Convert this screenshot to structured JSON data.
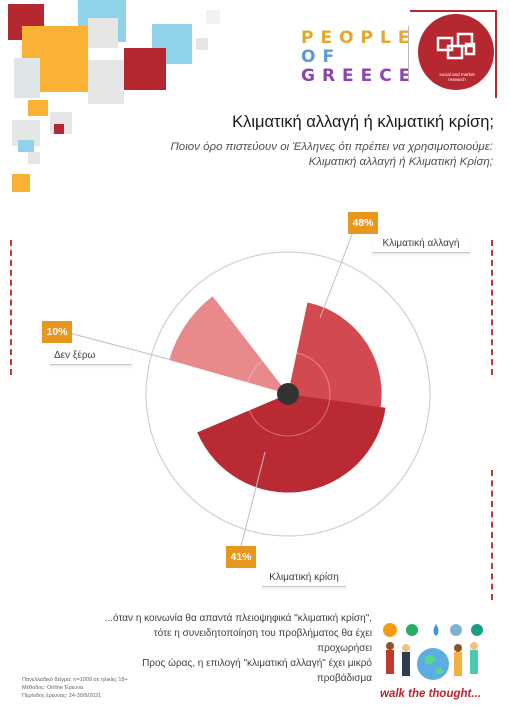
{
  "brand": {
    "logo_lines": [
      "PEOPLE",
      "OF",
      "GREECE"
    ],
    "logo_sub": "social and market research",
    "tagline": "walk the thought..."
  },
  "header": {
    "title": "Κλιματική αλλαγή ή κλιματική κρίση;",
    "subtitle_line1": "Ποιον όρο πιστεύουν οι Έλληνες ότι πρέπει να χρησιμοποιούμε:",
    "subtitle_line2": "Κλιματική αλλαγή ή Κλιματική Κρίση;"
  },
  "chart_data": {
    "type": "pie",
    "variant": "polar-area",
    "slices": [
      {
        "label": "Κλιματική αλλαγή",
        "value": 48,
        "display": "48%",
        "color": "#d24a4f"
      },
      {
        "label": "Κλιματική κρίση",
        "value": 41,
        "display": "41%",
        "color": "#b92a33"
      },
      {
        "label": "Δεν ξέρω",
        "value": 10,
        "display": "10%",
        "color": "#e8898c"
      }
    ],
    "hub_color": "#333333",
    "badge_color": "#e8971e"
  },
  "footer": {
    "note_line1": "...όταν η κοινωνία θα απαντά πλειοψηφικά \"κλιματική κρίση\",",
    "note_line2": "τότε η συνειδητοποίηση  του προβλήματος θα έχει προχωρήσει",
    "note_line3": "Προς ώρας, η επιλογή \"κλιματική αλλαγή\" έχει μικρό προβάδισμα"
  },
  "meta": {
    "line1": "Πανελλαδικό δείγμα: n=1009 σε ηλικίες 18+",
    "line2": "Μέθοδος: Online Έρευνα",
    "line3": "Περίοδος έρευνας: 24-30/9/2021"
  }
}
